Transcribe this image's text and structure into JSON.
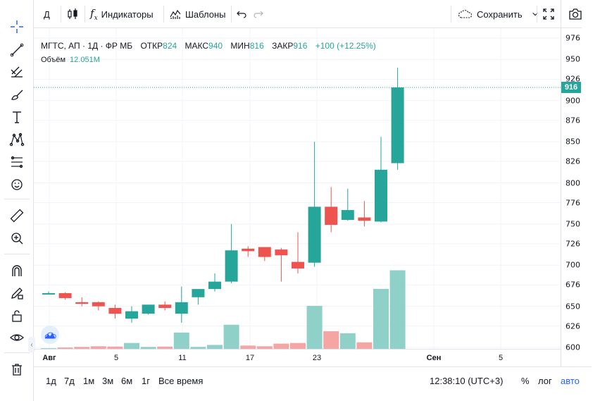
{
  "top_toolbar": {
    "interval": "Д",
    "indicators_label": "Индикаторы",
    "templates_label": "Шаблоны",
    "save_label": "Сохранить"
  },
  "legend": {
    "symbol": "МГТС, АП · 1Д · ФР МБ",
    "open_label": "ОТКР",
    "open_value": "824",
    "high_label": "МАКС",
    "high_value": "940",
    "low_label": "МИН",
    "low_value": "816",
    "close_label": "ЗАКР",
    "close_value": "916",
    "change": "+100 (+12.25%)"
  },
  "volume_legend": {
    "label": "Объём",
    "value": "12.051M"
  },
  "price_axis": {
    "ticks": [
      "976",
      "950",
      "926",
      "900",
      "876",
      "850",
      "826",
      "800",
      "776",
      "750",
      "726",
      "700",
      "676",
      "650",
      "626",
      "600"
    ],
    "last_price": "916"
  },
  "time_axis": {
    "ticks": [
      {
        "label": "Авг",
        "bold": true
      },
      {
        "label": "5",
        "bold": false
      },
      {
        "label": "11",
        "bold": false
      },
      {
        "label": "17",
        "bold": false
      },
      {
        "label": "23",
        "bold": false
      },
      {
        "label": "Сен",
        "bold": true
      },
      {
        "label": "5",
        "bold": false
      }
    ]
  },
  "bottom_toolbar": {
    "ranges": [
      "1д",
      "7д",
      "1м",
      "3м",
      "6м",
      "1г",
      "Все время"
    ],
    "clock": "12:38:10 (UTC+3)",
    "percent": "%",
    "log": "лог",
    "auto": "авто"
  },
  "colors": {
    "up": "#26a69a",
    "down": "#ef5350",
    "volume_up": "#8fd0c8",
    "volume_down": "#f5a5a3",
    "accent": "#2962ff"
  },
  "chart_data": {
    "type": "candlestick",
    "symbol": "МГТС, АП",
    "interval": "1Д",
    "ylim": [
      600,
      980
    ],
    "candles": [
      {
        "o": 666,
        "h": 668,
        "l": 665,
        "c": 666,
        "v": 0.1
      },
      {
        "o": 666,
        "h": 667,
        "l": 658,
        "c": 660,
        "v": 0.2
      },
      {
        "o": 655,
        "h": 661,
        "l": 650,
        "c": 653,
        "v": 0.3
      },
      {
        "o": 655,
        "h": 656,
        "l": 645,
        "c": 650,
        "v": 0.4
      },
      {
        "o": 648,
        "h": 652,
        "l": 635,
        "c": 641,
        "v": 0.35
      },
      {
        "o": 635,
        "h": 650,
        "l": 630,
        "c": 644,
        "v": 0.9
      },
      {
        "o": 641,
        "h": 652,
        "l": 640,
        "c": 652,
        "v": 0.3
      },
      {
        "o": 652,
        "h": 656,
        "l": 645,
        "c": 648,
        "v": 0.35
      },
      {
        "o": 641,
        "h": 674,
        "l": 630,
        "c": 655,
        "v": 2.5
      },
      {
        "o": 661,
        "h": 671,
        "l": 652,
        "c": 671,
        "v": 0.3
      },
      {
        "o": 671,
        "h": 690,
        "l": 668,
        "c": 680,
        "v": 0.6
      },
      {
        "o": 680,
        "h": 750,
        "l": 678,
        "c": 718,
        "v": 3.7
      },
      {
        "o": 720,
        "h": 723,
        "l": 710,
        "c": 717,
        "v": 0.5
      },
      {
        "o": 722,
        "h": 722,
        "l": 705,
        "c": 710,
        "v": 0.4
      },
      {
        "o": 719,
        "h": 721,
        "l": 680,
        "c": 712,
        "v": 0.8
      },
      {
        "o": 704,
        "h": 740,
        "l": 690,
        "c": 696,
        "v": 0.9
      },
      {
        "o": 703,
        "h": 850,
        "l": 698,
        "c": 771,
        "v": 6.6
      },
      {
        "o": 771,
        "h": 795,
        "l": 740,
        "c": 749,
        "v": 2.7
      },
      {
        "o": 755,
        "h": 793,
        "l": 754,
        "c": 767,
        "v": 2.4
      },
      {
        "o": 758,
        "h": 778,
        "l": 747,
        "c": 754,
        "v": 1.0
      },
      {
        "o": 753,
        "h": 856,
        "l": 752,
        "c": 816,
        "v": 9.2
      },
      {
        "o": 824,
        "h": 940,
        "l": 816,
        "c": 916,
        "v": 12.051
      }
    ]
  }
}
